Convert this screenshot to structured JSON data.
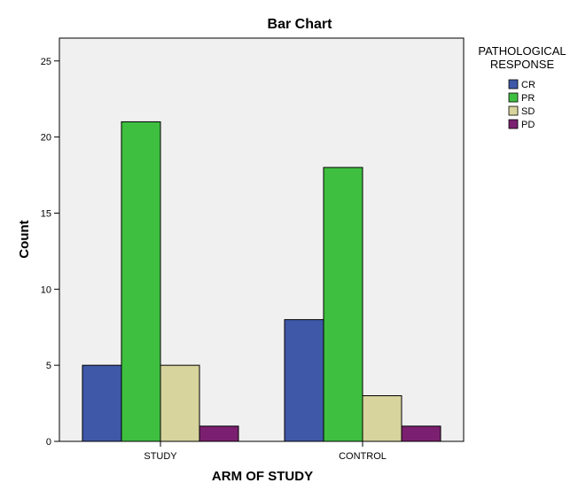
{
  "chart_data": {
    "type": "bar",
    "title": "Bar Chart",
    "xlabel": "ARM OF STUDY",
    "ylabel": "Count",
    "categories": [
      "STUDY",
      "CONTROL"
    ],
    "series": [
      {
        "name": "CR",
        "values": [
          5,
          8
        ],
        "color": "#3f59a8"
      },
      {
        "name": "PR",
        "values": [
          21,
          18
        ],
        "color": "#3fbf3f"
      },
      {
        "name": "SD",
        "values": [
          5,
          3
        ],
        "color": "#d8d49e"
      },
      {
        "name": "PD",
        "values": [
          1,
          1
        ],
        "color": "#7b1f70"
      }
    ],
    "ylim": [
      0,
      26.5
    ],
    "yticks": [
      0,
      5,
      10,
      15,
      20,
      25
    ],
    "legend": {
      "title_lines": [
        "PATHOLOGICAL",
        "RESPONSE"
      ],
      "position": "right"
    },
    "grid": false,
    "plot_background": "#f0f0f0"
  }
}
